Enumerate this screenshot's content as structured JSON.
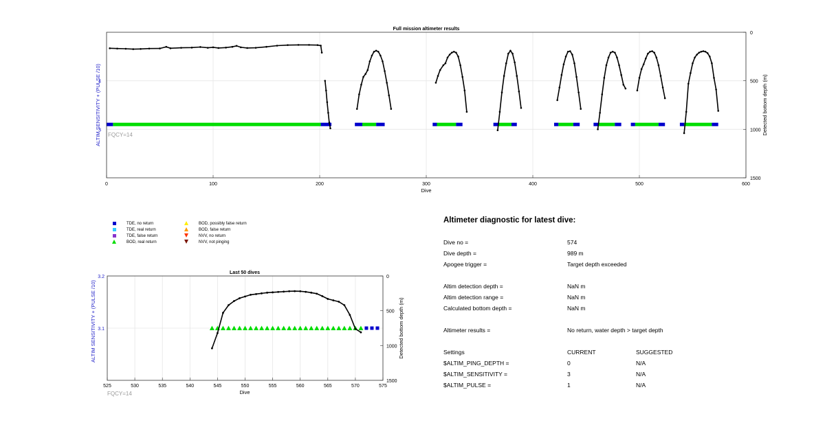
{
  "colors": {
    "axis_left": "#2020c8",
    "bod_real": "#00dd00",
    "tde_no": "#0000cc",
    "tde_real": "#33ccff",
    "tde_false": "#8833cc",
    "bod_possibly_false": "#ffee00",
    "bod_false": "#ff9900",
    "nvv_no_return": "#ff3300",
    "nvv_not_pinging": "#7a1500",
    "bottom_line": "#000000"
  },
  "legend": {
    "items": [
      {
        "label": "TDE, no return",
        "marker": "square",
        "color": "#0000cc"
      },
      {
        "label": "TDE, real return",
        "marker": "square",
        "color": "#33ccff"
      },
      {
        "label": "TDE, false return",
        "marker": "square",
        "color": "#8833cc"
      },
      {
        "label": "BOD, real return",
        "marker": "triangle-up",
        "color": "#00dd00"
      },
      {
        "label": "BOD, possibly false return",
        "marker": "triangle-up",
        "color": "#ffee00"
      },
      {
        "label": "BOD, false return",
        "marker": "triangle-up",
        "color": "#ff9900"
      },
      {
        "label": "NVV, no return",
        "marker": "triangle-down",
        "color": "#ff3300"
      },
      {
        "label": "NVV, not pinging",
        "marker": "triangle-down",
        "color": "#7a1500"
      }
    ]
  },
  "chart_data": [
    {
      "type": "scatter",
      "title": "Full mission altimeter results",
      "xlabel": "Dive",
      "ylabel": "ALTIM SENSITIVITY + (PULSE /10)",
      "y2label": "Detected bottom depth (m)",
      "annotation": "FQCY=14",
      "xlim": [
        0,
        600
      ],
      "ylim": [
        2,
        5
      ],
      "y2lim": [
        1500,
        0
      ],
      "xticks": [
        0,
        100,
        200,
        300,
        400,
        500,
        600
      ],
      "yticks": [
        3,
        4
      ],
      "y2ticks": [
        0,
        500,
        1000,
        1500
      ],
      "grid": true,
      "sensitivity_series": [
        {
          "name": "BOD, real return",
          "ranges": [
            [
              6,
              201
            ],
            [
              240,
              253
            ],
            [
              310,
              328
            ],
            [
              368,
              380
            ],
            [
              424,
              438
            ],
            [
              462,
              477
            ],
            [
              496,
              518
            ],
            [
              542,
              568
            ]
          ],
          "value": 3.1
        },
        {
          "name": "TDE, no return",
          "ranges": [
            [
              0,
              6
            ],
            [
              201,
              211
            ],
            [
              233,
              240
            ],
            [
              253,
              261
            ],
            [
              306,
              310
            ],
            [
              328,
              334
            ],
            [
              363,
              368
            ],
            [
              380,
              385
            ],
            [
              420,
              424
            ],
            [
              438,
              444
            ],
            [
              457,
              462
            ],
            [
              477,
              483
            ],
            [
              492,
              496
            ],
            [
              518,
              524
            ],
            [
              538,
              542
            ],
            [
              568,
              574
            ]
          ],
          "value": 3.1
        }
      ],
      "bottom_depth_segments": [
        [
          [
            3,
            165
          ],
          [
            10,
            168
          ],
          [
            18,
            170
          ],
          [
            25,
            174
          ],
          [
            32,
            172
          ],
          [
            40,
            168
          ],
          [
            50,
            167
          ],
          [
            56,
            150
          ],
          [
            60,
            165
          ],
          [
            70,
            160
          ],
          [
            80,
            158
          ],
          [
            88,
            152
          ],
          [
            95,
            160
          ],
          [
            100,
            155
          ],
          [
            105,
            162
          ],
          [
            112,
            158
          ],
          [
            118,
            150
          ],
          [
            122,
            140
          ],
          [
            126,
            155
          ],
          [
            132,
            162
          ],
          [
            140,
            160
          ],
          [
            150,
            150
          ],
          [
            160,
            138
          ],
          [
            170,
            132
          ],
          [
            180,
            130
          ],
          [
            190,
            130
          ],
          [
            198,
            132
          ],
          [
            201,
            137
          ],
          [
            202,
            210
          ]
        ],
        [
          [
            205,
            500
          ],
          [
            206,
            600
          ],
          [
            207,
            720
          ],
          [
            208,
            830
          ],
          [
            209,
            930
          ],
          [
            210,
            990
          ]
        ],
        [
          [
            235,
            790
          ],
          [
            237,
            640
          ],
          [
            239,
            540
          ],
          [
            241,
            460
          ],
          [
            243,
            430
          ],
          [
            245,
            390
          ],
          [
            247,
            300
          ],
          [
            249,
            240
          ],
          [
            251,
            200
          ],
          [
            253,
            190
          ],
          [
            255,
            200
          ],
          [
            257,
            240
          ],
          [
            259,
            300
          ],
          [
            261,
            400
          ],
          [
            263,
            520
          ],
          [
            265,
            650
          ],
          [
            267,
            790
          ]
        ],
        [
          [
            309,
            520
          ],
          [
            311,
            450
          ],
          [
            313,
            390
          ],
          [
            316,
            340
          ],
          [
            318,
            320
          ],
          [
            320,
            260
          ],
          [
            322,
            230
          ],
          [
            324,
            210
          ],
          [
            326,
            200
          ],
          [
            328,
            210
          ],
          [
            330,
            250
          ],
          [
            332,
            340
          ],
          [
            334,
            460
          ],
          [
            336,
            600
          ],
          [
            338,
            820
          ]
        ],
        [
          [
            367,
            1010
          ],
          [
            369,
            820
          ],
          [
            371,
            620
          ],
          [
            373,
            450
          ],
          [
            375,
            320
          ],
          [
            377,
            220
          ],
          [
            379,
            190
          ],
          [
            381,
            220
          ],
          [
            383,
            310
          ],
          [
            385,
            450
          ],
          [
            387,
            610
          ],
          [
            389,
            780
          ]
        ],
        [
          [
            423,
            700
          ],
          [
            425,
            570
          ],
          [
            427,
            440
          ],
          [
            429,
            330
          ],
          [
            431,
            250
          ],
          [
            433,
            200
          ],
          [
            435,
            195
          ],
          [
            437,
            230
          ],
          [
            439,
            320
          ],
          [
            441,
            460
          ],
          [
            443,
            620
          ],
          [
            445,
            790
          ]
        ],
        [
          [
            461,
            1000
          ],
          [
            463,
            830
          ],
          [
            465,
            640
          ],
          [
            467,
            470
          ],
          [
            469,
            340
          ],
          [
            471,
            260
          ],
          [
            473,
            210
          ],
          [
            475,
            200
          ],
          [
            477,
            210
          ],
          [
            479,
            260
          ],
          [
            481,
            340
          ],
          [
            483,
            440
          ],
          [
            485,
            540
          ],
          [
            487,
            580
          ]
        ],
        [
          [
            498,
            600
          ],
          [
            500,
            470
          ],
          [
            502,
            380
          ],
          [
            504,
            330
          ],
          [
            506,
            270
          ],
          [
            508,
            220
          ],
          [
            510,
            200
          ],
          [
            512,
            195
          ],
          [
            514,
            210
          ],
          [
            516,
            260
          ],
          [
            518,
            340
          ],
          [
            520,
            450
          ],
          [
            522,
            570
          ],
          [
            524,
            680
          ]
        ],
        [
          [
            542,
            1040
          ],
          [
            544,
            820
          ],
          [
            546,
            530
          ],
          [
            548,
            420
          ],
          [
            550,
            320
          ],
          [
            552,
            260
          ],
          [
            554,
            230
          ],
          [
            556,
            210
          ],
          [
            558,
            200
          ],
          [
            560,
            195
          ],
          [
            562,
            200
          ],
          [
            564,
            215
          ],
          [
            566,
            250
          ],
          [
            568,
            320
          ],
          [
            570,
            470
          ],
          [
            572,
            590
          ],
          [
            574,
            810
          ]
        ]
      ]
    },
    {
      "type": "scatter",
      "title": "Last 50 dives",
      "xlabel": "Dive",
      "ylabel": "ALTIM SENSITIVITY + (PULSE /10)",
      "y2label": "Detected bottom depth (m)",
      "annotation": "FQCY=14",
      "xlim": [
        525,
        575
      ],
      "ylim": [
        3.0,
        3.2
      ],
      "y2lim": [
        1500,
        0
      ],
      "xticks": [
        525,
        530,
        535,
        540,
        545,
        550,
        555,
        560,
        565,
        570,
        575
      ],
      "yticks": [
        3.1,
        3.2
      ],
      "y2ticks": [
        0,
        500,
        1000,
        1500
      ],
      "grid": true,
      "bod_real_x": [
        544,
        545,
        546,
        547,
        548,
        549,
        550,
        551,
        552,
        553,
        554,
        555,
        556,
        557,
        558,
        559,
        560,
        561,
        562,
        563,
        564,
        565,
        566,
        567,
        568,
        569,
        570,
        571
      ],
      "tde_no_return_x": [
        572,
        573,
        574
      ],
      "sensitivity_value": 3.1,
      "bottom_depth": {
        "x": [
          544,
          545,
          546,
          547,
          548,
          549,
          550,
          551,
          552,
          553,
          554,
          555,
          556,
          557,
          558,
          559,
          560,
          561,
          562,
          563,
          564,
          565,
          566,
          567,
          568,
          569,
          570,
          571
        ],
        "y": [
          1040,
          820,
          530,
          420,
          360,
          320,
          295,
          270,
          260,
          250,
          240,
          235,
          230,
          225,
          220,
          218,
          220,
          228,
          240,
          255,
          290,
          330,
          350,
          370,
          420,
          560,
          760,
          810
        ]
      }
    }
  ],
  "diagnostic": {
    "title": "Altimeter diagnostic for latest dive:",
    "rows": [
      {
        "label": "Dive no =",
        "value": "574",
        "extra": ""
      },
      {
        "label": "Dive depth =",
        "value": "989 m",
        "extra": ""
      },
      {
        "label": "Apogee trigger =",
        "value": "Target depth exceeded",
        "extra": ""
      },
      {
        "label": "Altim detection depth =",
        "value": "NaN m",
        "extra": ""
      },
      {
        "label": "Altim detection range =",
        "value": "NaN m",
        "extra": ""
      },
      {
        "label": "Calculated bottom depth =",
        "value": "NaN m",
        "extra": ""
      },
      {
        "label": "Altimeter results =",
        "value": "No return, water depth > target depth",
        "extra": ""
      },
      {
        "label": "Settings",
        "value": "CURRENT",
        "extra": "SUGGESTED"
      },
      {
        "label": "$ALTIM_PING_DEPTH =",
        "value": "0",
        "extra": "N/A"
      },
      {
        "label": "$ALTIM_SENSITIVITY =",
        "value": "3",
        "extra": "N/A"
      },
      {
        "label": "$ALTIM_PULSE =",
        "value": "1",
        "extra": "N/A"
      }
    ]
  }
}
